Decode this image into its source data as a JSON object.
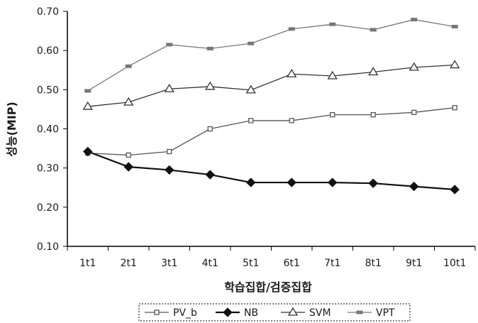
{
  "chart_data": {
    "type": "line",
    "title": "",
    "xlabel": "학습집합/검증집합",
    "ylabel": "성능(MIP)",
    "categories": [
      "1t1",
      "2t1",
      "3t1",
      "4t1",
      "5t1",
      "6t1",
      "7t1",
      "8t1",
      "9t1",
      "10t1"
    ],
    "ylim": [
      0.1,
      0.7
    ],
    "yticks": [
      "0.10",
      "0.20",
      "0.30",
      "0.40",
      "0.50",
      "0.60",
      "0.70"
    ],
    "grid": false,
    "legend_position": "bottom",
    "series": [
      {
        "name": "PV_b",
        "marker": "open-square",
        "color": "#555555",
        "values": [
          0.338,
          0.333,
          0.342,
          0.4,
          0.421,
          0.421,
          0.436,
          0.436,
          0.442,
          0.454
        ]
      },
      {
        "name": "NB",
        "marker": "filled-diamond",
        "color": "#111111",
        "values": [
          0.342,
          0.303,
          0.295,
          0.283,
          0.263,
          0.263,
          0.263,
          0.261,
          0.253,
          0.245
        ]
      },
      {
        "name": "SVM",
        "marker": "open-triangle",
        "color": "#333333",
        "values": [
          0.457,
          0.468,
          0.502,
          0.508,
          0.499,
          0.54,
          0.535,
          0.545,
          0.557,
          0.563
        ]
      },
      {
        "name": "VPT",
        "marker": "filled-rect",
        "color": "#777777",
        "values": [
          0.497,
          0.56,
          0.615,
          0.605,
          0.618,
          0.655,
          0.667,
          0.653,
          0.679,
          0.661
        ]
      }
    ]
  }
}
